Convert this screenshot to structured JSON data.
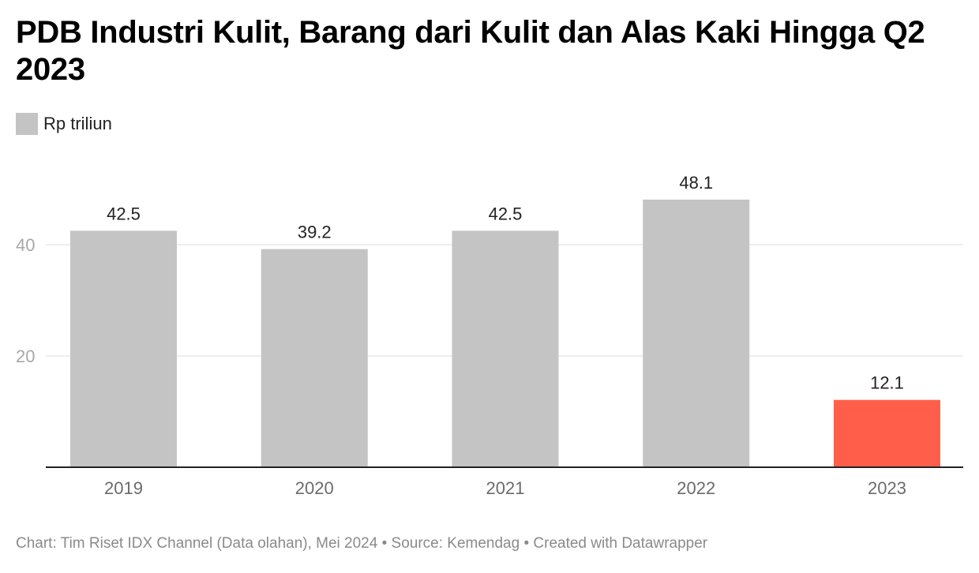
{
  "title": "PDB Industri Kulit, Barang dari Kulit dan Alas Kaki Hingga Q2 2023",
  "legend": {
    "label": "Rp triliun",
    "color": "#c4c4c4"
  },
  "chart_data": {
    "type": "bar",
    "title": "PDB Industri Kulit, Barang dari Kulit dan Alas Kaki Hingga Q2 2023",
    "categories": [
      "2019",
      "2020",
      "2021",
      "2022",
      "2023"
    ],
    "series": [
      {
        "name": "Rp triliun",
        "values": [
          42.5,
          39.2,
          42.5,
          48.1,
          12.1
        ]
      }
    ],
    "value_labels": [
      "42.5",
      "39.2",
      "42.5",
      "48.1",
      "12.1"
    ],
    "bar_colors": [
      "#c4c4c4",
      "#c4c4c4",
      "#c4c4c4",
      "#c4c4c4",
      "#ff5f4a"
    ],
    "y_ticks": [
      20,
      40
    ],
    "ylim": [
      0,
      50
    ],
    "grid": true,
    "legend_position": "top-left",
    "xlabel": "",
    "ylabel": ""
  },
  "footer": {
    "text": "Chart: Tim Riset IDX Channel (Data olahan), Mei 2024 • Source: Kemendag • Created with Datawrapper"
  }
}
